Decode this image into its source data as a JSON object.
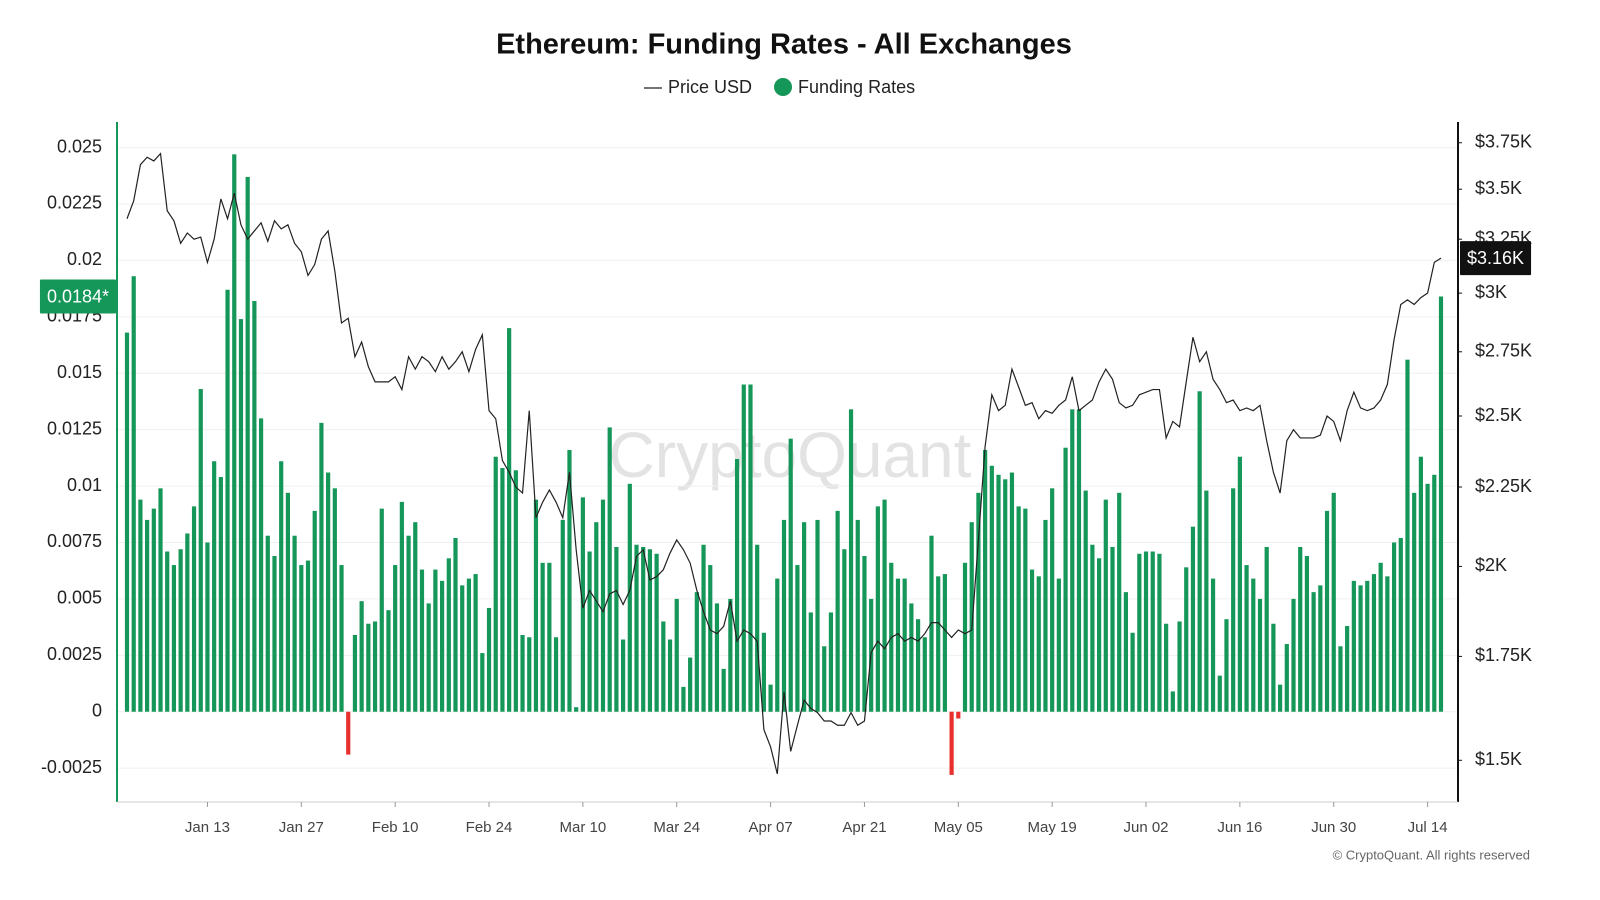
{
  "chart_data": {
    "type": "combo",
    "title": "Ethereum: Funding Rates - All Exchanges",
    "watermark": "CryptoQuant",
    "footer": "© CryptoQuant. All rights reserved",
    "categories": [
      null,
      null,
      null,
      null,
      null,
      null,
      null,
      null,
      null,
      null,
      null,
      null,
      "Jan 13",
      null,
      null,
      null,
      null,
      null,
      null,
      null,
      null,
      null,
      null,
      null,
      null,
      null,
      "Jan 27",
      null,
      null,
      null,
      null,
      null,
      null,
      null,
      null,
      null,
      null,
      null,
      null,
      null,
      "Feb 10",
      null,
      null,
      null,
      null,
      null,
      null,
      null,
      null,
      null,
      null,
      null,
      null,
      null,
      "Feb 24",
      null,
      null,
      null,
      null,
      null,
      null,
      null,
      null,
      null,
      null,
      null,
      null,
      null,
      "Mar 10",
      null,
      null,
      null,
      null,
      null,
      null,
      null,
      null,
      null,
      null,
      null,
      null,
      null,
      "Mar 24",
      null,
      null,
      null,
      null,
      null,
      null,
      null,
      null,
      null,
      null,
      null,
      null,
      null,
      "Apr 07",
      null,
      null,
      null,
      null,
      null,
      null,
      null,
      null,
      null,
      null,
      null,
      null,
      null,
      "Apr 21",
      null,
      null,
      null,
      null,
      null,
      null,
      null,
      null,
      null,
      null,
      null,
      null,
      null,
      "May 05",
      null,
      null,
      null,
      null,
      null,
      null,
      null,
      null,
      null,
      null,
      null,
      null,
      null,
      "May 19",
      null,
      null,
      null,
      null,
      null,
      null,
      null,
      null,
      null,
      null,
      null,
      null,
      null,
      "Jun 02",
      null,
      null,
      null,
      null,
      null,
      null,
      null,
      null,
      null,
      null,
      null,
      null,
      null,
      "Jun 16",
      null,
      null,
      null,
      null,
      null,
      null,
      null,
      null,
      null,
      null,
      null,
      null,
      null,
      "Jun 30",
      null,
      null,
      null,
      null,
      null,
      null,
      null,
      null,
      null,
      null,
      null,
      null,
      null,
      "Jul 14",
      null,
      null
    ],
    "series": [
      {
        "name": "Price USD",
        "type": "line",
        "axis": "y2",
        "color": "#222222",
        "values": [
          3350,
          3440,
          3630,
          3670,
          3650,
          3690,
          3390,
          3340,
          3230,
          3280,
          3250,
          3260,
          3140,
          3250,
          3450,
          3350,
          3480,
          3320,
          3250,
          3290,
          3330,
          3240,
          3340,
          3300,
          3320,
          3230,
          3190,
          3080,
          3130,
          3250,
          3290,
          3100,
          2870,
          2890,
          2730,
          2790,
          2690,
          2630,
          2630,
          2630,
          2650,
          2600,
          2730,
          2680,
          2730,
          2710,
          2670,
          2730,
          2680,
          2710,
          2750,
          2670,
          2760,
          2820,
          2520,
          2490,
          2340,
          2300,
          2250,
          2230,
          2520,
          2150,
          2200,
          2240,
          2200,
          2150,
          2300,
          2050,
          1880,
          1930,
          1900,
          1870,
          1920,
          1930,
          1890,
          1930,
          2030,
          2050,
          1960,
          1970,
          1990,
          2040,
          2080,
          2050,
          2010,
          1930,
          1870,
          1820,
          1810,
          1830,
          1900,
          1790,
          1820,
          1810,
          1790,
          1570,
          1530,
          1470,
          1660,
          1520,
          1580,
          1640,
          1620,
          1610,
          1590,
          1590,
          1580,
          1580,
          1610,
          1580,
          1590,
          1760,
          1790,
          1770,
          1800,
          1810,
          1790,
          1800,
          1790,
          1810,
          1840,
          1840,
          1820,
          1800,
          1820,
          1810,
          1820,
          2080,
          2390,
          2580,
          2520,
          2540,
          2680,
          2610,
          2540,
          2550,
          2490,
          2520,
          2510,
          2540,
          2560,
          2650,
          2520,
          2540,
          2560,
          2630,
          2680,
          2640,
          2550,
          2530,
          2540,
          2580,
          2590,
          2600,
          2600,
          2420,
          2480,
          2460,
          2630,
          2810,
          2710,
          2750,
          2640,
          2600,
          2550,
          2560,
          2520,
          2530,
          2520,
          2540,
          2410,
          2300,
          2230,
          2410,
          2450,
          2420,
          2420,
          2420,
          2430,
          2500,
          2480,
          2410,
          2520,
          2590,
          2530,
          2520,
          2530,
          2560,
          2620,
          2800,
          2950,
          2970,
          2950,
          2980,
          3000,
          3140,
          3160
        ]
      },
      {
        "name": "Funding Rates",
        "type": "bar",
        "axis": "y",
        "color": "#16975a",
        "negative_color": "#e8312f",
        "values": [
          0.0168,
          0.0193,
          0.0094,
          0.0085,
          0.009,
          0.0099,
          0.0071,
          0.0065,
          0.0072,
          0.0079,
          0.0091,
          0.0143,
          0.0075,
          0.0111,
          0.0104,
          0.0187,
          0.0247,
          0.0174,
          0.0237,
          0.0182,
          0.013,
          0.0078,
          0.0069,
          0.0111,
          0.0097,
          0.0078,
          0.0065,
          0.0067,
          0.0089,
          0.0128,
          0.0106,
          0.0099,
          0.0065,
          -0.0019,
          0.0034,
          0.0049,
          0.0039,
          0.004,
          0.009,
          0.0045,
          0.0065,
          0.0093,
          0.0078,
          0.0084,
          0.0063,
          0.0048,
          0.0063,
          0.0058,
          0.0068,
          0.0077,
          0.0056,
          0.0059,
          0.0061,
          0.0026,
          0.0046,
          0.0113,
          0.0108,
          0.017,
          0.0107,
          0.0034,
          0.0033,
          0.0094,
          0.0066,
          0.0066,
          0.0033,
          0.0085,
          0.0116,
          0.0002,
          0.0095,
          0.0071,
          0.0084,
          0.0094,
          0.0126,
          0.0073,
          0.0032,
          0.0101,
          0.0074,
          0.0073,
          0.0072,
          0.007,
          0.004,
          0.0032,
          0.005,
          0.0011,
          0.0024,
          0.0053,
          0.0074,
          0.0065,
          0.0048,
          0.0019,
          0.005,
          0.0112,
          0.0145,
          0.0145,
          0.0074,
          0.0035,
          0.0012,
          0.0059,
          0.0085,
          0.0121,
          0.0065,
          0.0084,
          0.0044,
          0.0085,
          0.0029,
          0.0044,
          0.0089,
          0.0072,
          0.0134,
          0.0085,
          0.0069,
          0.005,
          0.0091,
          0.0094,
          0.0066,
          0.0059,
          0.0059,
          0.0048,
          0.0041,
          0.0033,
          0.0078,
          0.006,
          0.0061,
          -0.0028,
          -0.0003,
          0.0066,
          0.0084,
          0.0097,
          0.0116,
          0.0109,
          0.0105,
          0.0103,
          0.0106,
          0.0091,
          0.009,
          0.0063,
          0.006,
          0.0085,
          0.0099,
          0.0059,
          0.0117,
          0.0134,
          0.0134,
          0.0098,
          0.0074,
          0.0068,
          0.0094,
          0.0073,
          0.0097,
          0.0053,
          0.0035,
          0.007,
          0.0071,
          0.0071,
          0.007,
          0.0039,
          0.0009,
          0.004,
          0.0064,
          0.0082,
          0.0142,
          0.0098,
          0.0059,
          0.0016,
          0.0041,
          0.0099,
          0.0113,
          0.0065,
          0.0059,
          0.005,
          0.0073,
          0.0039,
          0.0012,
          0.003,
          0.005,
          0.0073,
          0.0069,
          0.0053,
          0.0056,
          0.0089,
          0.0097,
          0.0029,
          0.0038,
          0.0058,
          0.0056,
          0.0058,
          0.0061,
          0.0066,
          0.006,
          0.0075,
          0.0077,
          0.0156,
          0.0097,
          0.0113,
          0.0101,
          0.0105,
          0.0184
        ]
      }
    ],
    "ylim": [
      -0.004,
      0.026
    ],
    "yticks": [
      -0.0025,
      0,
      0.0025,
      0.005,
      0.0075,
      0.01,
      0.0125,
      0.015,
      0.0175,
      0.02,
      0.0225,
      0.025
    ],
    "y2lim": [
      1410,
      3850
    ],
    "y2scale": "log",
    "y2ticks": [
      {
        "value": 1500,
        "label": "$1.5K"
      },
      {
        "value": 1750,
        "label": "$1.75K"
      },
      {
        "value": 2000,
        "label": "$2K"
      },
      {
        "value": 2250,
        "label": "$2.25K"
      },
      {
        "value": 2500,
        "label": "$2.5K"
      },
      {
        "value": 2750,
        "label": "$2.75K"
      },
      {
        "value": 3000,
        "label": "$3K"
      },
      {
        "value": 3250,
        "label": "$3.25K"
      },
      {
        "value": 3500,
        "label": "$3.5K"
      },
      {
        "value": 3750,
        "label": "$3.75K"
      }
    ],
    "grid": true,
    "annotations": [
      {
        "axis": "y",
        "value": 0.0184,
        "label": "0.0184*",
        "color": "#16975a"
      },
      {
        "axis": "y2",
        "value": 3160,
        "label": "$3.16K",
        "color": "#111111"
      }
    ]
  }
}
